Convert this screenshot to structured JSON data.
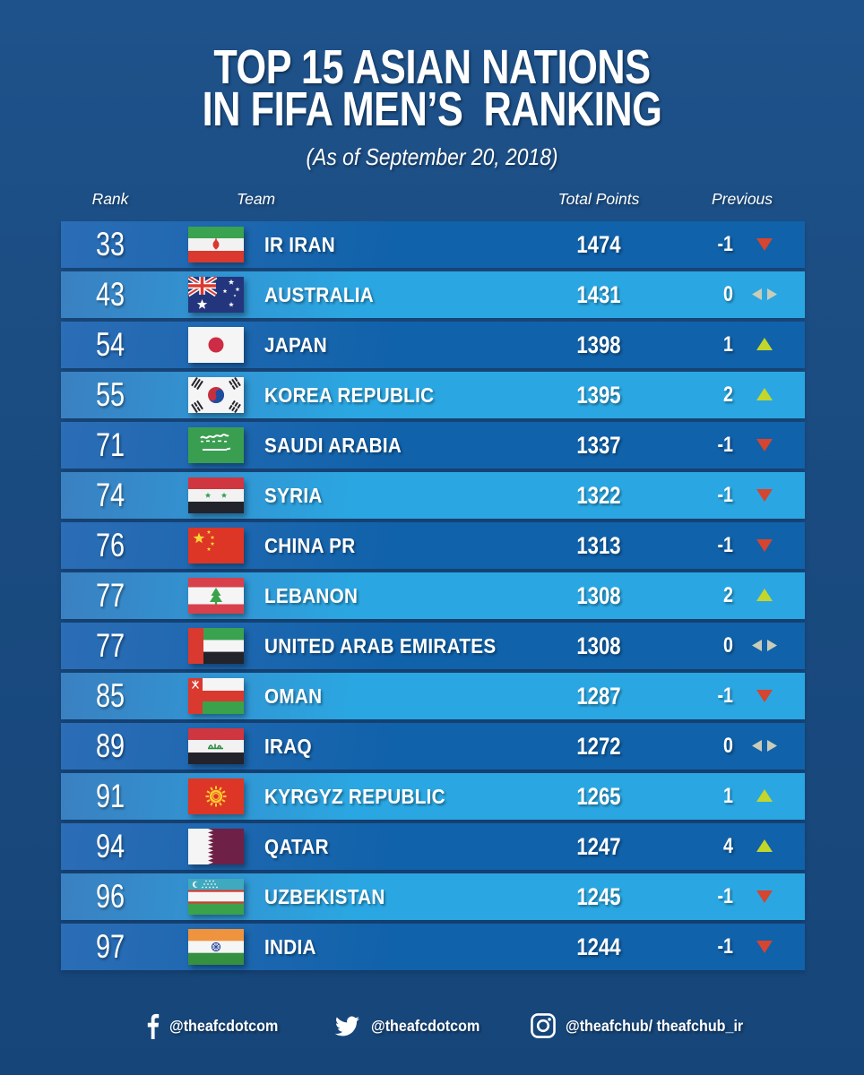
{
  "header": {
    "title_line1": "TOP 15 ASIAN NATIONS",
    "title_line2": "IN FIFA MEN’S  RANKING",
    "subtitle": "(As of September 20, 2018)"
  },
  "chart_data": {
    "type": "table",
    "title": "TOP 15 ASIAN NATIONS IN FIFA MEN'S RANKING",
    "subtitle": "(As of September 20, 2018)",
    "columns": [
      "Rank",
      "Team",
      "Total Points",
      "Previous"
    ],
    "rows": [
      {
        "rank": 33,
        "team": "IR IRAN",
        "flag": "iran",
        "total_points": 1474,
        "previous_change": -1,
        "trend": "down"
      },
      {
        "rank": 43,
        "team": "AUSTRALIA",
        "flag": "australia",
        "total_points": 1431,
        "previous_change": 0,
        "trend": "same"
      },
      {
        "rank": 54,
        "team": "JAPAN",
        "flag": "japan",
        "total_points": 1398,
        "previous_change": 1,
        "trend": "up"
      },
      {
        "rank": 55,
        "team": "KOREA REPUBLIC",
        "flag": "korea-republic",
        "total_points": 1395,
        "previous_change": 2,
        "trend": "up"
      },
      {
        "rank": 71,
        "team": "SAUDI ARABIA",
        "flag": "saudi-arabia",
        "total_points": 1337,
        "previous_change": -1,
        "trend": "down"
      },
      {
        "rank": 74,
        "team": "SYRIA",
        "flag": "syria",
        "total_points": 1322,
        "previous_change": -1,
        "trend": "down"
      },
      {
        "rank": 76,
        "team": "CHINA PR",
        "flag": "china-pr",
        "total_points": 1313,
        "previous_change": -1,
        "trend": "down"
      },
      {
        "rank": 77,
        "team": "LEBANON",
        "flag": "lebanon",
        "total_points": 1308,
        "previous_change": 2,
        "trend": "up"
      },
      {
        "rank": 77,
        "team": "UNITED ARAB EMIRATES",
        "flag": "united-arab-emirates",
        "total_points": 1308,
        "previous_change": 0,
        "trend": "same"
      },
      {
        "rank": 85,
        "team": "OMAN",
        "flag": "oman",
        "total_points": 1287,
        "previous_change": -1,
        "trend": "down"
      },
      {
        "rank": 89,
        "team": "IRAQ",
        "flag": "iraq",
        "total_points": 1272,
        "previous_change": 0,
        "trend": "same"
      },
      {
        "rank": 91,
        "team": "KYRGYZ REPUBLIC",
        "flag": "kyrgyz-republic",
        "total_points": 1265,
        "previous_change": 1,
        "trend": "up"
      },
      {
        "rank": 94,
        "team": "QATAR",
        "flag": "qatar",
        "total_points": 1247,
        "previous_change": 4,
        "trend": "up"
      },
      {
        "rank": 96,
        "team": "UZBEKISTAN",
        "flag": "uzbekistan",
        "total_points": 1245,
        "previous_change": -1,
        "trend": "down"
      },
      {
        "rank": 97,
        "team": "INDIA",
        "flag": "india",
        "total_points": 1244,
        "previous_change": -1,
        "trend": "down"
      }
    ],
    "legend": "Previous column: change vs previous ranking; up = green-yellow arrow, down = red arrow, same = neutral arrows"
  },
  "footer": {
    "items": [
      {
        "icon": "facebook-icon",
        "handle": "@theafcdotcom"
      },
      {
        "icon": "twitter-icon",
        "handle": "@theafcdotcom"
      },
      {
        "icon": "instagram-icon",
        "handle": "@theafchub/ theafchub_ir"
      }
    ]
  },
  "colors": {
    "background": "#1a4b80",
    "row_dark": "#1062aa",
    "row_dark_edge": "#2b6db6",
    "row_light": "#2aa7e2",
    "row_light_edge": "#3a80c1",
    "trend_up": "#c3d62b",
    "trend_down": "#d5452f",
    "trend_neutral": "#c9cdb8",
    "text": "#ffffff"
  }
}
